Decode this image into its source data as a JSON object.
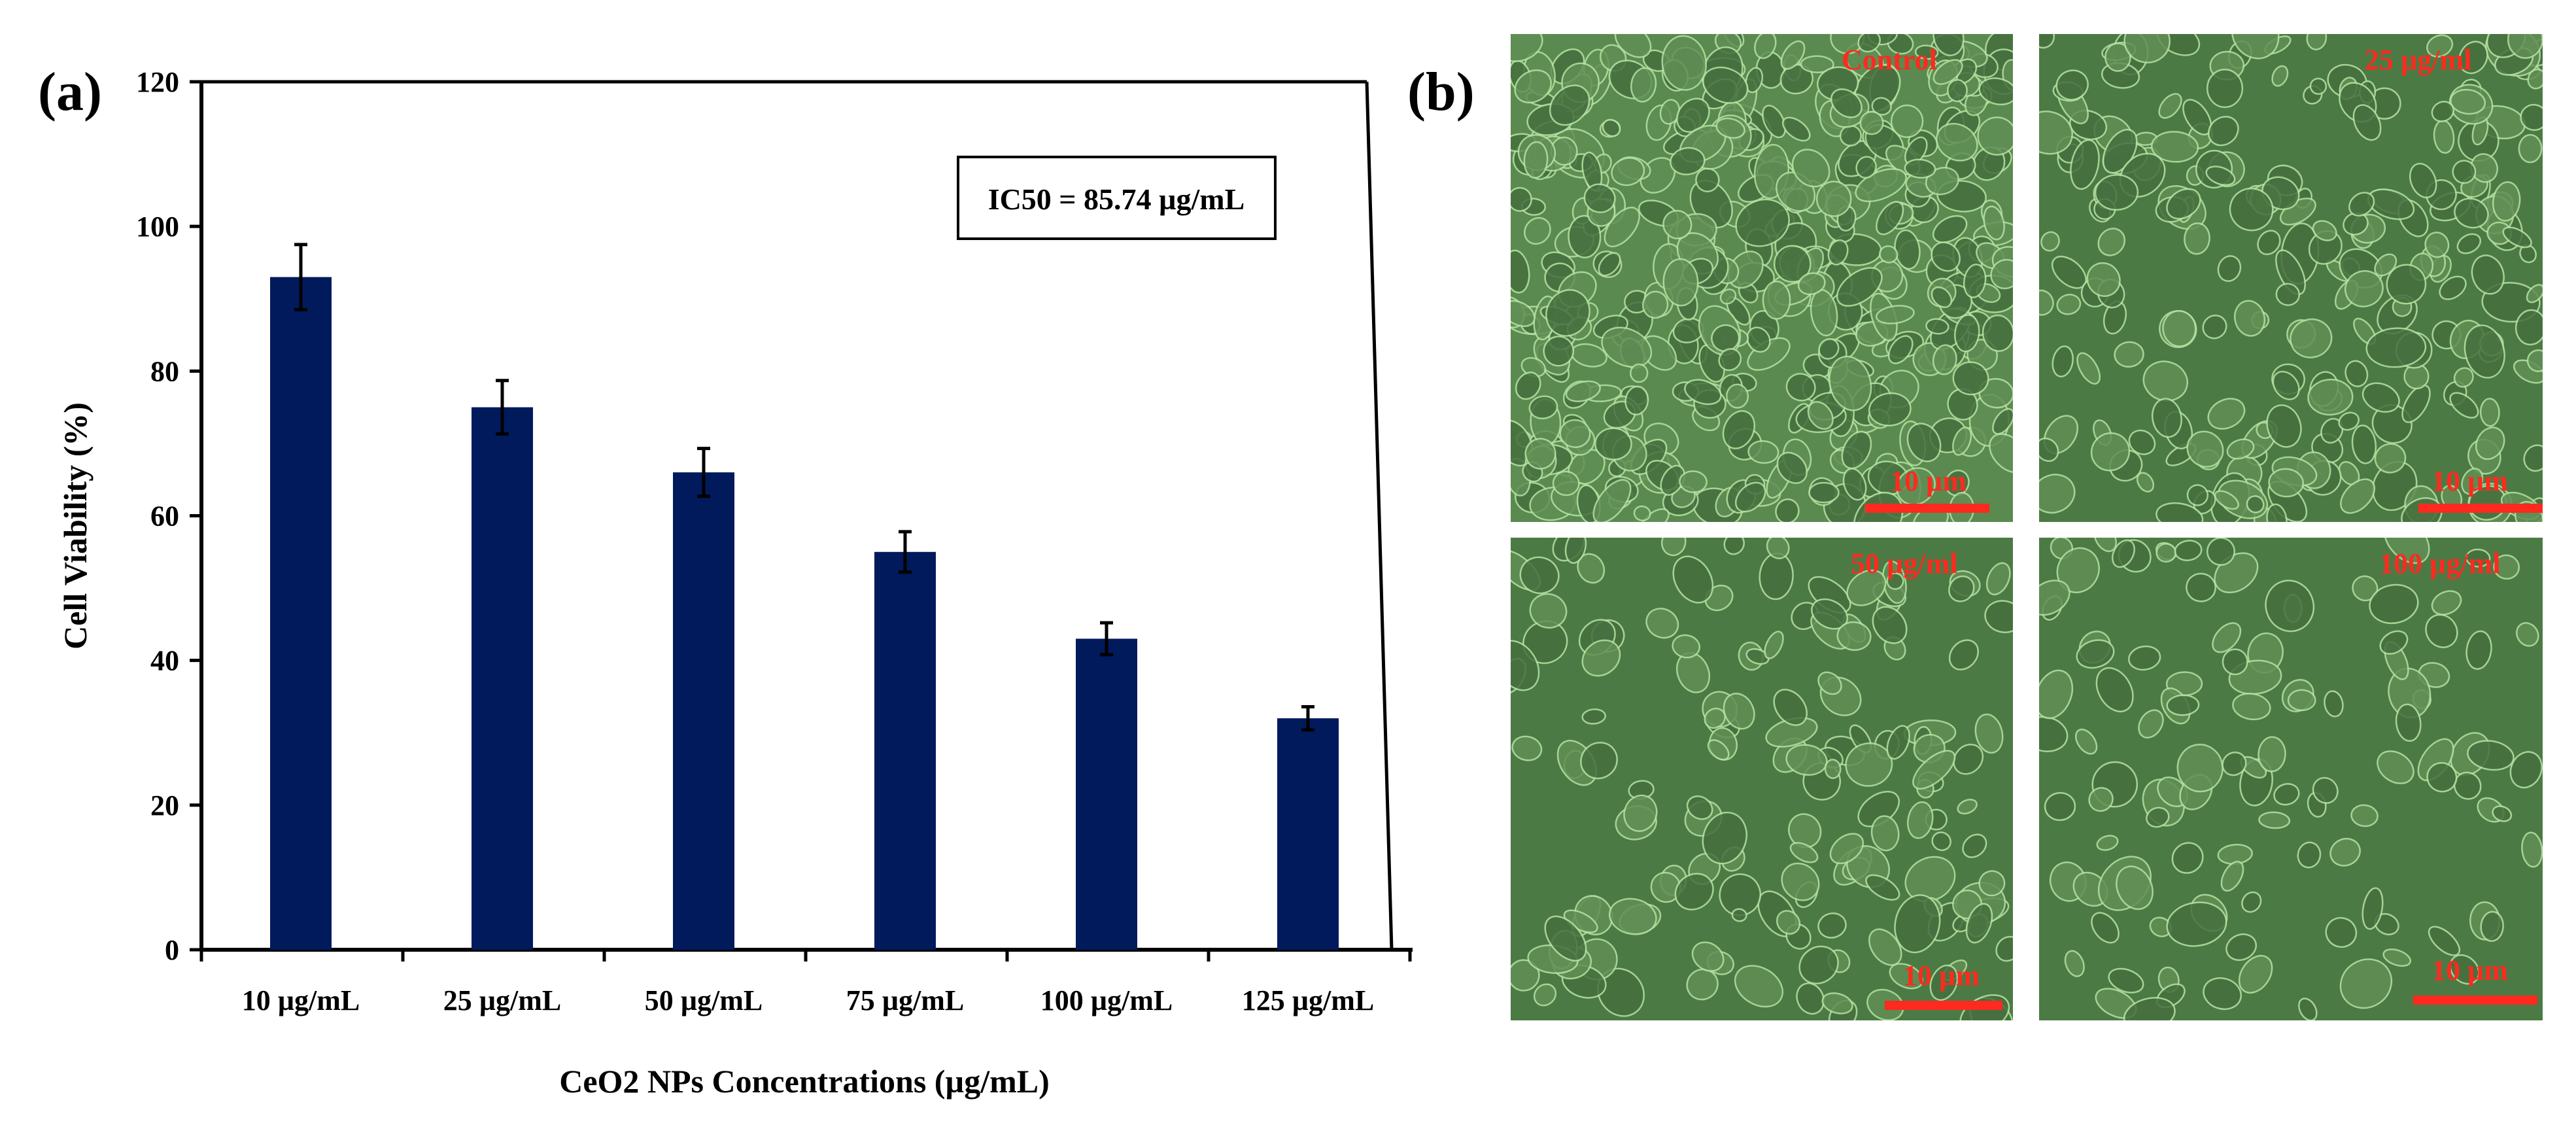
{
  "panel_a": {
    "label": "(a)"
  },
  "panel_b": {
    "label": "(b)"
  },
  "chart_data": {
    "type": "bar",
    "categories": [
      "10 µg/mL",
      "25 µg/mL",
      "50 µg/mL",
      "75 µg/mL",
      "100 µg/mL",
      "125 µg/mL"
    ],
    "values": [
      93,
      75,
      66,
      55,
      43,
      32
    ],
    "errors": [
      4.5,
      3.7,
      3.3,
      2.8,
      2.2,
      1.6
    ],
    "xlabel": "CeO2 NPs Concentrations (µg/mL)",
    "ylabel": "Cell Viability (%)",
    "ylim": [
      0,
      120
    ],
    "yticks": [
      0,
      20,
      40,
      60,
      80,
      100,
      120
    ],
    "grid": false,
    "bar_color": "#001a5c",
    "annotation": "IC50 = 85.74  µg/mL"
  },
  "micrographs": [
    {
      "label": "Control",
      "scale": "10 µm"
    },
    {
      "label": "25 µg/ml",
      "scale": "10 µm"
    },
    {
      "label": "50 µg/ml",
      "scale": "10 µm"
    },
    {
      "label": "100 µg/ml",
      "scale": "10 µm"
    }
  ],
  "colors": {
    "label_red": "#ff2a1f",
    "micrograph_green": "#4f7d48"
  }
}
